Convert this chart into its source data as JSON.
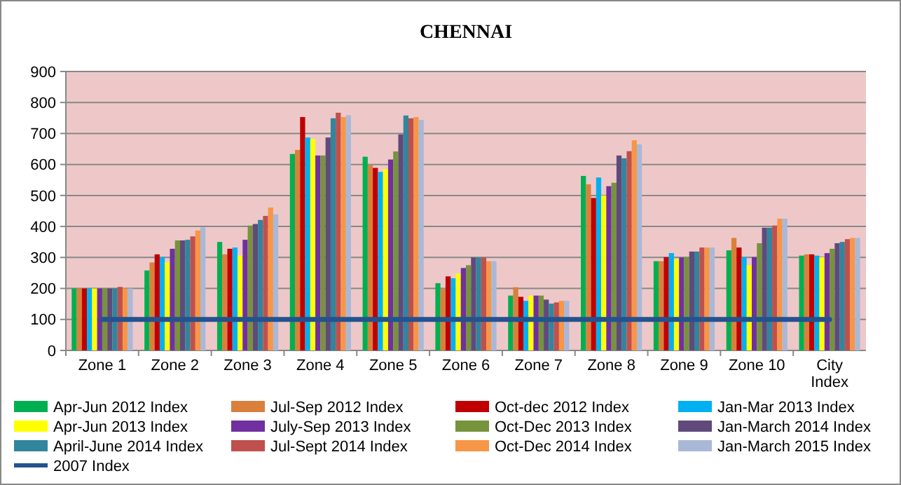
{
  "chart_data": {
    "type": "bar",
    "title": "CHENNAI",
    "categories": [
      "Zone 1",
      "Zone 2",
      "Zone 3",
      "Zone 4",
      "Zone 5",
      "Zone 6",
      "Zone 7",
      "Zone 8",
      "Zone 9",
      "Zone 10",
      "City Index"
    ],
    "ylim": [
      0,
      900
    ],
    "yticks": [
      0,
      100,
      200,
      300,
      400,
      500,
      600,
      700,
      800,
      900
    ],
    "grid": "y",
    "legend": "bottom",
    "series": [
      {
        "name": "Apr-Jun 2012 Index",
        "color": "#00b050",
        "values": [
          200,
          258,
          350,
          634,
          625,
          217,
          177,
          563,
          288,
          323,
          306
        ]
      },
      {
        "name": "Jul-Sep 2012 Index",
        "color": "#d9803c",
        "values": [
          200,
          284,
          310,
          647,
          597,
          198,
          204,
          536,
          288,
          363,
          310
        ]
      },
      {
        "name": "Oct-dec 2012 Index",
        "color": "#c00000",
        "values": [
          200,
          310,
          328,
          753,
          589,
          239,
          173,
          492,
          301,
          332,
          310
        ]
      },
      {
        "name": "Jan-Mar 2013 Index",
        "color": "#00b0f0",
        "values": [
          200,
          301,
          332,
          687,
          576,
          233,
          160,
          558,
          314,
          301,
          306
        ]
      },
      {
        "name": "Apr-Jun 2013 Index",
        "color": "#ffff00",
        "values": [
          200,
          284,
          306,
          682,
          585,
          248,
          177,
          500,
          295,
          275,
          301
        ]
      },
      {
        "name": "July-Sep 2013 Index",
        "color": "#7030a0",
        "values": [
          200,
          328,
          357,
          629,
          616,
          266,
          177,
          530,
          300,
          301,
          314
        ]
      },
      {
        "name": "Oct-Dec 2013 Index",
        "color": "#77933c",
        "values": [
          200,
          355,
          403,
          629,
          642,
          275,
          177,
          541,
          301,
          346,
          328
        ]
      },
      {
        "name": "Jan-March 2014 Index",
        "color": "#604a7b",
        "values": [
          200,
          355,
          408,
          687,
          697,
          300,
          164,
          629,
          319,
          396,
          346
        ]
      },
      {
        "name": "April-June 2014 Index",
        "color": "#31859c",
        "values": [
          200,
          357,
          421,
          749,
          758,
          300,
          151,
          620,
          319,
          396,
          350
        ]
      },
      {
        "name": "Jul-Sept 2014 Index",
        "color": "#c0504d",
        "values": [
          205,
          368,
          434,
          767,
          749,
          300,
          155,
          643,
          332,
          403,
          359
        ]
      },
      {
        "name": "Oct-Dec 2014 Index",
        "color": "#f79646",
        "values": [
          200,
          387,
          461,
          753,
          753,
          288,
          160,
          678,
          332,
          425,
          363
        ]
      },
      {
        "name": "Jan-March 2015 Index",
        "color": "#aab8d8",
        "values": [
          200,
          397,
          439,
          759,
          744,
          288,
          160,
          665,
          332,
          425,
          363
        ]
      },
      {
        "name": "2007 Index",
        "type": "line",
        "color": "#24528f",
        "values": [
          100,
          100,
          100,
          100,
          100,
          100,
          100,
          100,
          100,
          100,
          100
        ]
      }
    ]
  }
}
